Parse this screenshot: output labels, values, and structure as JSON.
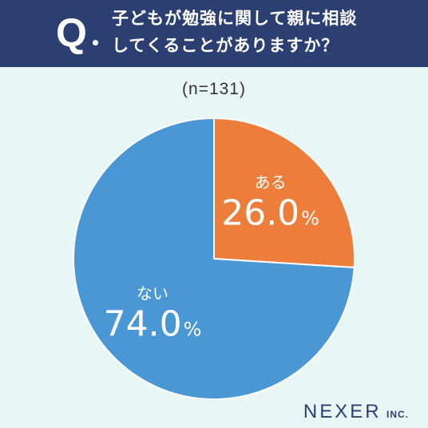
{
  "header": {
    "q_mark": "Q",
    "question_line1": "子どもが勉強に関して親に相談",
    "question_line2": "してくることがありますか？"
  },
  "sample_size": "(n=131)",
  "colors": {
    "header_bg": "#2c3f73",
    "background": "#e9f6f6",
    "yes": "#ed7d3a",
    "no": "#4a97d6"
  },
  "chart_data": {
    "type": "pie",
    "slices": [
      {
        "label": "ある",
        "value": 26.0,
        "value_text": "26.0",
        "unit": "%",
        "color": "#ed7d3a"
      },
      {
        "label": "ない",
        "value": 74.0,
        "value_text": "74.0",
        "unit": "%",
        "color": "#4a97d6"
      }
    ]
  },
  "brand": {
    "name": "NEXER",
    "suffix": "INC."
  }
}
